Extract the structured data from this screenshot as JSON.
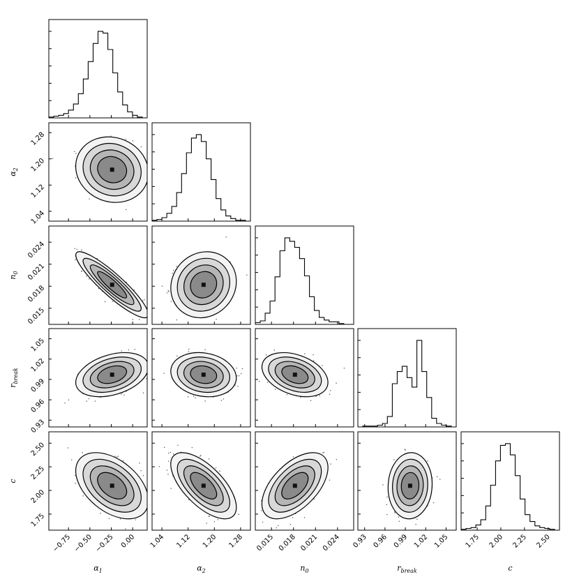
{
  "chart_data": {
    "type": "corner",
    "parameters": [
      {
        "key": "a1",
        "label_main": "α",
        "label_sub": "1",
        "ticks": [
          -0.75,
          -0.5,
          -0.25,
          0.0
        ],
        "tick_labels": [
          "−0.75",
          "−0.50",
          "−0.25",
          "0.00"
        ],
        "range": [
          -0.98,
          0.17
        ],
        "mean": -0.24,
        "sd": 0.17
      },
      {
        "key": "a2",
        "label_main": "α",
        "label_sub": "2",
        "ticks": [
          1.04,
          1.12,
          1.2,
          1.28
        ],
        "tick_labels": [
          "1.04",
          "1.12",
          "1.20",
          "1.28"
        ],
        "range": [
          1.01,
          1.31
        ],
        "mean": 1.167,
        "sd": 0.04
      },
      {
        "key": "n0",
        "label_main": "n",
        "label_sub": "0",
        "ticks": [
          0.015,
          0.018,
          0.021,
          0.024
        ],
        "tick_labels": [
          "0.015",
          "0.018",
          "0.021",
          "0.024"
        ],
        "range": [
          0.0128,
          0.0262
        ],
        "mean": 0.0182,
        "sd": 0.0018
      },
      {
        "key": "rb",
        "label_main": "r",
        "label_sub": "break",
        "ticks": [
          0.93,
          0.96,
          0.99,
          1.02,
          1.05
        ],
        "tick_labels": [
          "0.93",
          "0.96",
          "0.99",
          "1.02",
          "1.05"
        ],
        "range": [
          0.92,
          1.065
        ],
        "mean": 0.997,
        "sd": 0.013
      },
      {
        "key": "c",
        "label_main": "c",
        "label_sub": "",
        "ticks": [
          1.75,
          2.0,
          2.25,
          2.5
        ],
        "tick_labels": [
          "1.75",
          "2.00",
          "2.25",
          "2.50"
        ],
        "range": [
          1.58,
          2.62
        ],
        "mean": 2.05,
        "sd": 0.14
      }
    ],
    "histograms": [
      {
        "param": "a1",
        "edges_from": -0.98,
        "bin_width": 0.0575,
        "counts": [
          1,
          2,
          3,
          5,
          9,
          16,
          28,
          45,
          65,
          86,
          100,
          98,
          79,
          52,
          30,
          15,
          7,
          3,
          1,
          0
        ]
      },
      {
        "param": "a2",
        "edges_from": 1.01,
        "bin_width": 0.015,
        "counts": [
          1,
          2,
          4,
          9,
          17,
          33,
          55,
          79,
          96,
          100,
          92,
          72,
          48,
          26,
          13,
          6,
          3,
          1,
          1,
          0
        ]
      },
      {
        "param": "n0",
        "edges_from": 0.0128,
        "bin_width": 0.00067,
        "counts": [
          2,
          4,
          13,
          27,
          55,
          85,
          100,
          96,
          89,
          76,
          56,
          32,
          16,
          8,
          5,
          3,
          3,
          1,
          0,
          0
        ]
      },
      {
        "param": "rb",
        "edges_from": 0.92,
        "bin_width": 0.00725,
        "counts": [
          0,
          1,
          1,
          1,
          2,
          4,
          12,
          50,
          64,
          70,
          57,
          46,
          100,
          64,
          34,
          10,
          4,
          2,
          1,
          0
        ]
      },
      {
        "param": "c",
        "edges_from": 1.58,
        "bin_width": 0.052,
        "counts": [
          1,
          2,
          3,
          6,
          12,
          28,
          52,
          80,
          98,
          100,
          87,
          63,
          36,
          18,
          10,
          5,
          3,
          2,
          1,
          0
        ]
      }
    ],
    "correlations": {
      "a2|a1": -0.1,
      "n0|a1": -0.9,
      "n0|a2": 0.1,
      "rb|a1": 0.35,
      "rb|a2": -0.15,
      "rb|n0": -0.35,
      "c|a1": -0.45,
      "c|a2": -0.65,
      "c|n0": 0.55,
      "c|rb": 0.05
    },
    "contour_levels": "1σ, 1.5σ, 2σ, 2.5σ (corner-plot style)",
    "grid": false,
    "legend": "none",
    "title": "",
    "colors": {
      "line": "#000000",
      "scatter": "#000000",
      "density_dark": "#000000",
      "density_light": "#ffffff"
    }
  }
}
